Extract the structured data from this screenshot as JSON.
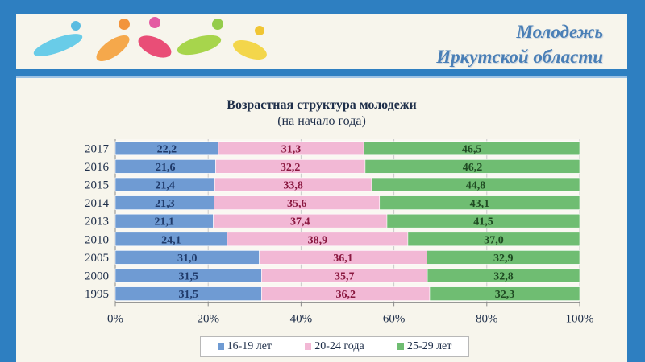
{
  "banner": {
    "title_line1": "Молодежь",
    "title_line2": "Иркутской области"
  },
  "chart_data": {
    "type": "bar",
    "orientation": "horizontal",
    "stacking": "percent",
    "title": "Возрастная структура молодежи",
    "subtitle": "(на начало года)",
    "categories": [
      "2017",
      "2016",
      "2015",
      "2014",
      "2013",
      "2010",
      "2005",
      "2000",
      "1995"
    ],
    "series": [
      {
        "name": "16-19 лет",
        "color": "#6f9bd3",
        "label_color": "#1f3a6a",
        "values": [
          22.2,
          21.6,
          21.4,
          21.3,
          21.1,
          24.1,
          31.0,
          31.5,
          31.5
        ],
        "labels": [
          "22,2",
          "21,6",
          "21,4",
          "21,3",
          "21,1",
          "24,1",
          "31,0",
          "31,5",
          "31,5"
        ]
      },
      {
        "name": "20-24 года",
        "color": "#f2b8d5",
        "label_color": "#8a1840",
        "values": [
          31.3,
          32.2,
          33.8,
          35.6,
          37.4,
          38.9,
          36.1,
          35.7,
          36.2
        ],
        "labels": [
          "31,3",
          "32,2",
          "33,8",
          "35,6",
          "37,4",
          "38,9",
          "36,1",
          "35,7",
          "36,2"
        ]
      },
      {
        "name": "25-29 лет",
        "color": "#6fbd72",
        "label_color": "#1f4a22",
        "values": [
          46.5,
          46.2,
          44.8,
          43.1,
          41.5,
          37.0,
          32.9,
          32.8,
          32.3
        ],
        "labels": [
          "46,5",
          "46,2",
          "44,8",
          "43,1",
          "41,5",
          "37,0",
          "32,9",
          "32,8",
          "32,3"
        ]
      }
    ],
    "x_ticks": [
      "0%",
      "20%",
      "40%",
      "60%",
      "80%",
      "100%"
    ],
    "xlim": [
      0,
      100
    ],
    "grid": true,
    "legend_position": "bottom"
  }
}
